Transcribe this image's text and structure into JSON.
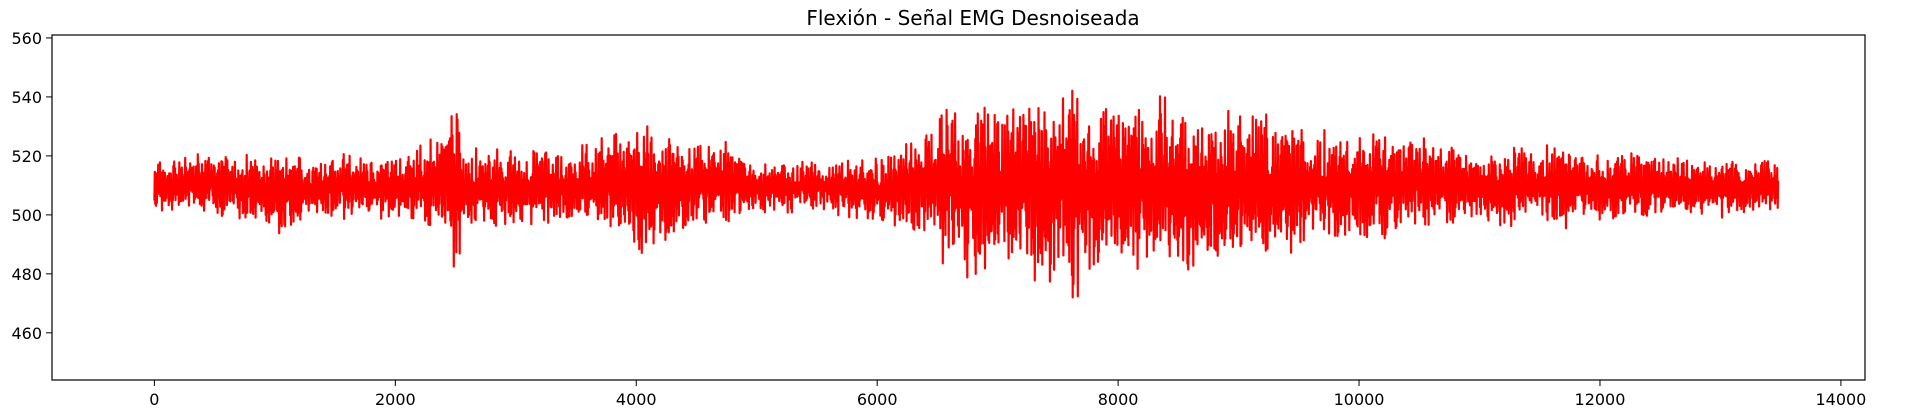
{
  "chart_data": {
    "type": "line",
    "title": "Flexión - Señal EMG Desnoiseada",
    "xlabel": "",
    "ylabel": "",
    "xlim": [
      -850,
      14200
    ],
    "ylim": [
      444,
      561
    ],
    "x_ticks": [
      0,
      2000,
      4000,
      6000,
      8000,
      10000,
      12000,
      14000
    ],
    "y_ticks": [
      460,
      480,
      500,
      520,
      540,
      560
    ],
    "x_tick_labels": [
      "0",
      "2000",
      "4000",
      "6000",
      "8000",
      "10000",
      "12000",
      "14000"
    ],
    "y_tick_labels": [
      "460",
      "480",
      "500",
      "520",
      "540",
      "560"
    ],
    "grid": false,
    "legend": false,
    "colors": {
      "line": "#ff0000"
    },
    "series": [
      {
        "x": [
          0,
          500,
          1000,
          1500,
          2000,
          2450,
          2500,
          2550,
          3000,
          3500,
          4000,
          4050,
          4500,
          4700,
          5000,
          5500,
          6000,
          6400,
          6650,
          6700,
          7000,
          7300,
          7500,
          7600,
          7640,
          7700,
          8000,
          8300,
          8600,
          9000,
          9500,
          10000,
          10500,
          11000,
          11500,
          12000,
          12500,
          13000,
          13480
        ],
        "y": [
          509,
          511,
          507,
          510,
          509,
          512,
          510,
          508,
          509,
          510,
          511,
          506,
          510,
          512,
          509,
          510,
          508,
          510,
          512,
          507,
          509,
          511,
          510,
          512,
          508,
          510,
          509,
          511,
          508,
          510,
          509,
          510,
          511,
          509,
          510,
          509,
          510,
          509,
          510
        ],
        "envelope": [
          10,
          12,
          14,
          12,
          11,
          20,
          40,
          16,
          14,
          14,
          22,
          26,
          14,
          16,
          10,
          10,
          12,
          20,
          36,
          36,
          30,
          34,
          36,
          45,
          55,
          34,
          30,
          32,
          30,
          30,
          24,
          20,
          18,
          14,
          16,
          14,
          12,
          10,
          10
        ]
      }
    ]
  }
}
